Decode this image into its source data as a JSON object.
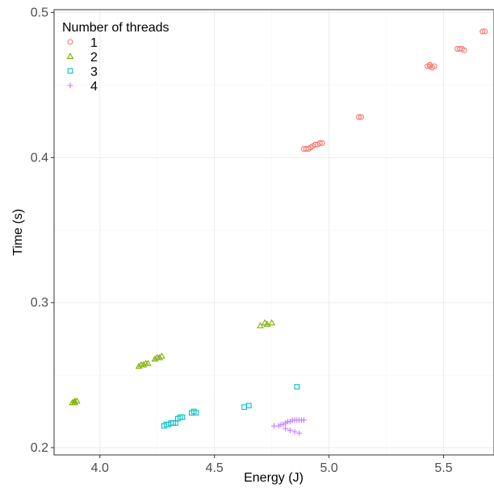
{
  "chart_data": {
    "type": "scatter",
    "title": "",
    "xlabel": "Energy (J)",
    "ylabel": "Time (s)",
    "xlim": [
      3.8,
      5.72
    ],
    "ylim": [
      0.195,
      0.502
    ],
    "x_ticks": [
      4.0,
      4.5,
      5.0,
      5.5
    ],
    "x_tick_labels": [
      "4.0",
      "4.5",
      "5.0",
      "5.5"
    ],
    "y_ticks": [
      0.2,
      0.3,
      0.4,
      0.5
    ],
    "y_tick_labels": [
      "0.2",
      "0.3",
      "0.4",
      "0.5"
    ],
    "grid": true,
    "legend": {
      "title": "Number of threads",
      "position": "top-left"
    },
    "series": [
      {
        "name": "1",
        "marker": "circle",
        "color": "#F8766D",
        "points": [
          [
            4.89,
            0.406
          ],
          [
            4.9,
            0.406
          ],
          [
            4.91,
            0.406
          ],
          [
            4.92,
            0.407
          ],
          [
            4.93,
            0.408
          ],
          [
            4.94,
            0.409
          ],
          [
            4.95,
            0.409
          ],
          [
            4.96,
            0.41
          ],
          [
            4.97,
            0.41
          ],
          [
            5.13,
            0.428
          ],
          [
            5.14,
            0.428
          ],
          [
            5.43,
            0.463
          ],
          [
            5.44,
            0.463
          ],
          [
            5.45,
            0.462
          ],
          [
            5.46,
            0.463
          ],
          [
            5.44,
            0.464
          ],
          [
            5.56,
            0.475
          ],
          [
            5.57,
            0.475
          ],
          [
            5.58,
            0.475
          ],
          [
            5.59,
            0.474
          ],
          [
            5.67,
            0.487
          ],
          [
            5.68,
            0.487
          ]
        ]
      },
      {
        "name": "2",
        "marker": "triangle",
        "color": "#7CAE00",
        "points": [
          [
            3.88,
            0.231
          ],
          [
            3.89,
            0.231
          ],
          [
            3.9,
            0.232
          ],
          [
            3.89,
            0.232
          ],
          [
            4.17,
            0.256
          ],
          [
            4.18,
            0.257
          ],
          [
            4.19,
            0.257
          ],
          [
            4.2,
            0.258
          ],
          [
            4.21,
            0.258
          ],
          [
            4.24,
            0.261
          ],
          [
            4.25,
            0.262
          ],
          [
            4.26,
            0.262
          ],
          [
            4.27,
            0.263
          ],
          [
            4.7,
            0.284
          ],
          [
            4.72,
            0.286
          ],
          [
            4.73,
            0.285
          ],
          [
            4.75,
            0.286
          ]
        ]
      },
      {
        "name": "3",
        "marker": "square",
        "color": "#00BFC4",
        "points": [
          [
            4.28,
            0.215
          ],
          [
            4.29,
            0.216
          ],
          [
            4.3,
            0.216
          ],
          [
            4.31,
            0.217
          ],
          [
            4.32,
            0.217
          ],
          [
            4.33,
            0.217
          ],
          [
            4.34,
            0.22
          ],
          [
            4.35,
            0.221
          ],
          [
            4.36,
            0.221
          ],
          [
            4.4,
            0.224
          ],
          [
            4.41,
            0.225
          ],
          [
            4.42,
            0.224
          ],
          [
            4.63,
            0.228
          ],
          [
            4.65,
            0.229
          ],
          [
            4.86,
            0.242
          ]
        ]
      },
      {
        "name": "4",
        "marker": "plus",
        "color": "#C77CFF",
        "points": [
          [
            4.76,
            0.215
          ],
          [
            4.78,
            0.215
          ],
          [
            4.79,
            0.216
          ],
          [
            4.8,
            0.216
          ],
          [
            4.81,
            0.217
          ],
          [
            4.82,
            0.218
          ],
          [
            4.83,
            0.218
          ],
          [
            4.84,
            0.219
          ],
          [
            4.85,
            0.219
          ],
          [
            4.86,
            0.219
          ],
          [
            4.87,
            0.219
          ],
          [
            4.88,
            0.219
          ],
          [
            4.89,
            0.219
          ],
          [
            4.81,
            0.213
          ],
          [
            4.83,
            0.212
          ],
          [
            4.85,
            0.211
          ],
          [
            4.87,
            0.21
          ]
        ]
      }
    ]
  }
}
